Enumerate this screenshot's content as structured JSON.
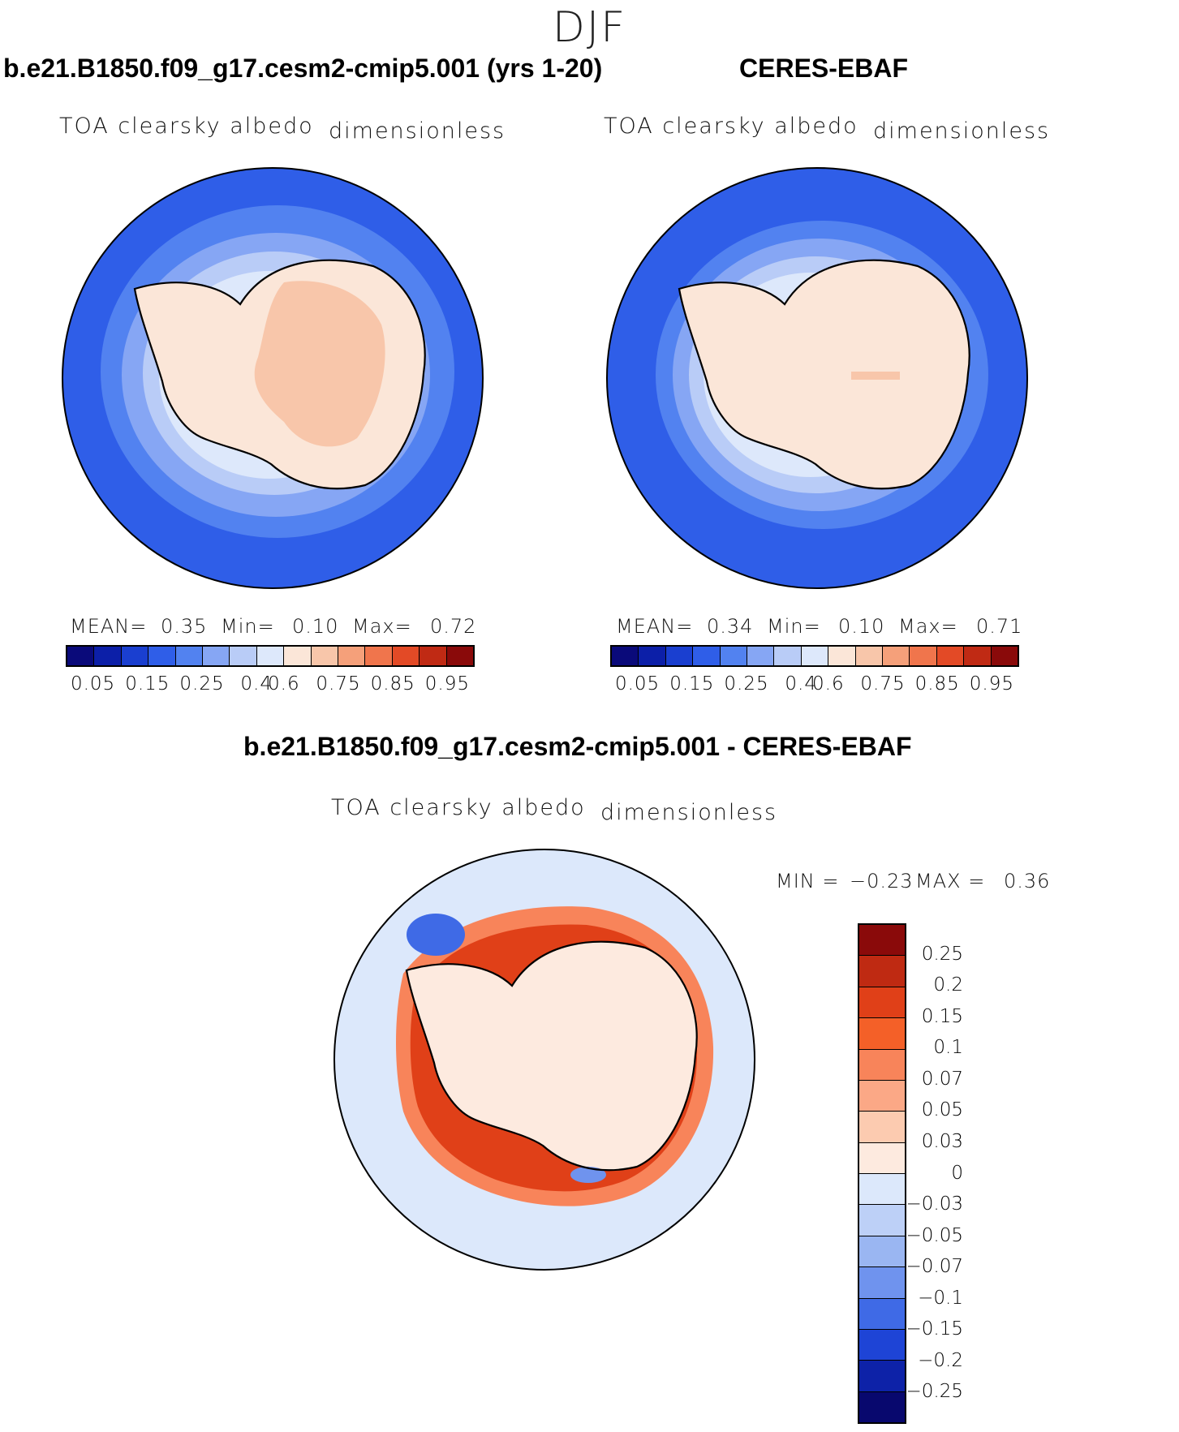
{
  "season": "DJF",
  "panels": {
    "model": {
      "title": "b.e21.B1850.f09_g17.cesm2-cmip5.001 (yrs 1-20)",
      "variable": "TOA clearsky albedo",
      "units": "dimensionless",
      "mean_label": "MEAN=",
      "mean": "0.35",
      "min_label": "Min=",
      "min": "0.10",
      "max_label": "Max=",
      "max": "0.72"
    },
    "obs": {
      "title": "CERES-EBAF",
      "variable": "TOA clearsky albedo",
      "units": "dimensionless",
      "mean_label": "MEAN=",
      "mean": "0.34",
      "min_label": "Min=",
      "min": "0.10",
      "max_label": "Max=",
      "max": "0.71"
    },
    "diff": {
      "title": "b.e21.B1850.f09_g17.cesm2-cmip5.001 - CERES-EBAF",
      "variable": "TOA clearsky albedo",
      "units": "dimensionless",
      "min_label": "MIN =",
      "min": "−0.23",
      "max_label": "MAX =",
      "max": "0.36"
    }
  },
  "abs_colorbar": {
    "ticks": [
      "0.05",
      "0.15",
      "0.25",
      "0.4",
      "0.6",
      "0.75",
      "0.85",
      "0.95"
    ],
    "colors": [
      "#0a0a7a",
      "#0c1fa8",
      "#1a3fd0",
      "#2f5ee8",
      "#5282f0",
      "#86a6f4",
      "#b9ccf7",
      "#dde8fb",
      "#fbe6d8",
      "#f8c6aa",
      "#f5a07a",
      "#f0754c",
      "#e34a26",
      "#c02a14",
      "#8a0a0a"
    ]
  },
  "diff_colorbar": {
    "ticks": [
      "0.25",
      "0.2",
      "0.15",
      "0.1",
      "0.07",
      "0.05",
      "0.03",
      "0",
      "−0.03",
      "−0.05",
      "−0.07",
      "−0.1",
      "−0.15",
      "−0.2",
      "−0.25"
    ],
    "colors": [
      "#8a0a0a",
      "#bf2a12",
      "#e04018",
      "#f46028",
      "#f8845a",
      "#fba886",
      "#fccbb0",
      "#fdeadf",
      "#dce8fb",
      "#bdd0f7",
      "#9ab6f2",
      "#6f93ee",
      "#3f6ae6",
      "#1e44d6",
      "#0d22a8",
      "#08086e"
    ]
  }
}
